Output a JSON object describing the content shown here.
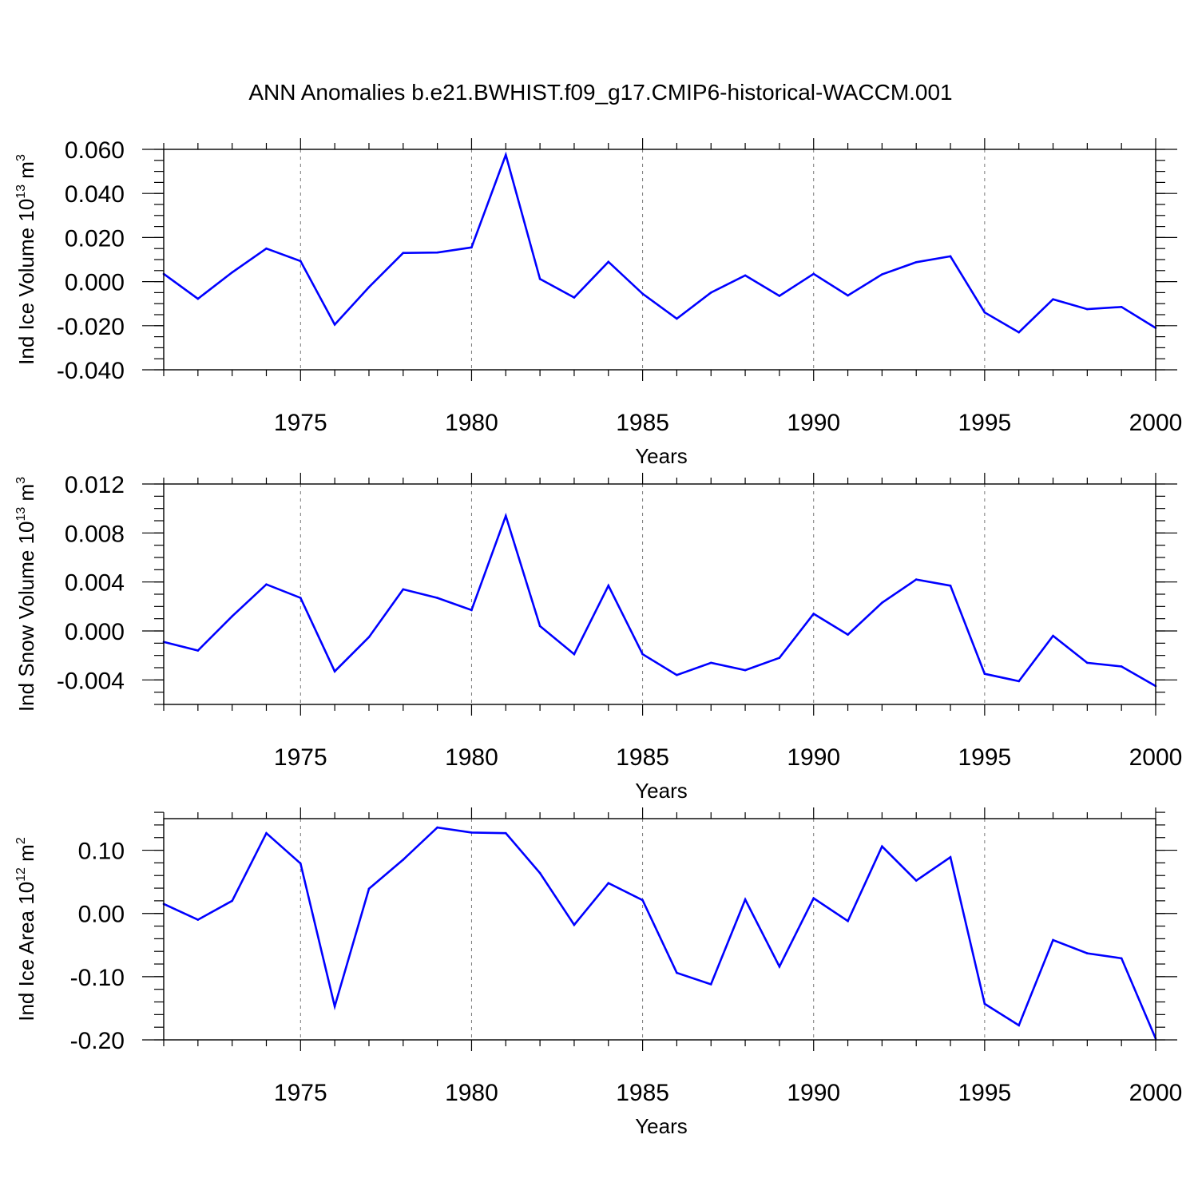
{
  "title": "ANN Anomalies b.e21.BWHIST.f09_g17.CMIP6-historical-WACCM.001",
  "colors": {
    "series": "#0000ff",
    "grid": "#777777",
    "axis": "#000000"
  },
  "chart_data": [
    {
      "type": "line",
      "ylabel_main": "Ind Ice Volume 10",
      "ylabel_exp": "13",
      "ylabel_unit": " m",
      "ylabel_unit_exp": "3",
      "xlabel": "Years",
      "xlim": [
        1971,
        2000
      ],
      "ylim": [
        -0.04,
        0.06
      ],
      "x_ticks": [
        1975,
        1980,
        1985,
        1990,
        1995,
        2000
      ],
      "x_tick_labels": [
        "1975",
        "1980",
        "1985",
        "1990",
        "1995",
        "2000"
      ],
      "y_ticks": [
        -0.04,
        -0.02,
        0.0,
        0.02,
        0.04,
        0.06
      ],
      "y_tick_labels": [
        "-0.040",
        "-0.020",
        "0.000",
        "0.020",
        "0.040",
        "0.060"
      ],
      "y_minor_step": 0.005,
      "grid_x": [
        1975,
        1980,
        1985,
        1990,
        1995
      ],
      "series": [
        {
          "name": "Ind Ice Volume",
          "x": [
            1971,
            1972,
            1973,
            1974,
            1975,
            1976,
            1977,
            1978,
            1979,
            1980,
            1981,
            1982,
            1983,
            1984,
            1985,
            1986,
            1987,
            1988,
            1989,
            1990,
            1991,
            1992,
            1993,
            1994,
            1995,
            1996,
            1997,
            1998,
            1999,
            2000
          ],
          "values": [
            0.0035,
            -0.0078,
            0.0042,
            0.015,
            0.0093,
            -0.0195,
            -0.0025,
            0.013,
            0.0132,
            0.0155,
            0.0575,
            0.0012,
            -0.0072,
            0.009,
            -0.0055,
            -0.0168,
            -0.005,
            0.0028,
            -0.0065,
            0.0035,
            -0.0063,
            0.0033,
            0.0088,
            0.0115,
            -0.014,
            -0.023,
            -0.008,
            -0.0125,
            -0.0115,
            -0.021
          ]
        }
      ]
    },
    {
      "type": "line",
      "ylabel_main": "Ind Snow Volume 10",
      "ylabel_exp": "13",
      "ylabel_unit": " m",
      "ylabel_unit_exp": "3",
      "xlabel": "Years",
      "xlim": [
        1971,
        2000
      ],
      "ylim": [
        -0.006,
        0.012
      ],
      "x_ticks": [
        1975,
        1980,
        1985,
        1990,
        1995,
        2000
      ],
      "x_tick_labels": [
        "1975",
        "1980",
        "1985",
        "1990",
        "1995",
        "2000"
      ],
      "y_ticks": [
        -0.004,
        0.0,
        0.004,
        0.008,
        0.012
      ],
      "y_tick_labels": [
        "-0.004",
        "0.000",
        "0.004",
        "0.008",
        "0.012"
      ],
      "y_minor_step": 0.001,
      "grid_x": [
        1975,
        1980,
        1985,
        1990,
        1995
      ],
      "series": [
        {
          "name": "Ind Snow Volume",
          "x": [
            1971,
            1972,
            1973,
            1974,
            1975,
            1976,
            1977,
            1978,
            1979,
            1980,
            1981,
            1982,
            1983,
            1984,
            1985,
            1986,
            1987,
            1988,
            1989,
            1990,
            1991,
            1992,
            1993,
            1994,
            1995,
            1996,
            1997,
            1998,
            1999,
            2000
          ],
          "values": [
            -0.0009,
            -0.0016,
            0.0012,
            0.0038,
            0.0027,
            -0.0033,
            -0.0005,
            0.0034,
            0.0027,
            0.0017,
            0.0094,
            0.0004,
            -0.0019,
            0.0037,
            -0.0019,
            -0.0036,
            -0.0026,
            -0.0032,
            -0.0022,
            0.0014,
            -0.0003,
            0.0023,
            0.0042,
            0.0037,
            -0.0035,
            -0.0041,
            -0.0004,
            -0.0026,
            -0.0029,
            -0.0045
          ]
        }
      ]
    },
    {
      "type": "line",
      "ylabel_main": "Ind Ice Area 10",
      "ylabel_exp": "12",
      "ylabel_unit": " m",
      "ylabel_unit_exp": "2",
      "xlabel": "Years",
      "xlim": [
        1971,
        2000
      ],
      "ylim": [
        -0.2,
        0.15
      ],
      "x_ticks": [
        1975,
        1980,
        1985,
        1990,
        1995,
        2000
      ],
      "x_tick_labels": [
        "1975",
        "1980",
        "1985",
        "1990",
        "1995",
        "2000"
      ],
      "y_ticks": [
        -0.2,
        -0.1,
        0.0,
        0.1
      ],
      "y_tick_labels": [
        "-0.20",
        "-0.10",
        "0.00",
        "0.10"
      ],
      "y_minor_step": 0.02,
      "grid_x": [
        1975,
        1980,
        1985,
        1990,
        1995
      ],
      "series": [
        {
          "name": "Ind Ice Area",
          "x": [
            1971,
            1972,
            1973,
            1974,
            1975,
            1976,
            1977,
            1978,
            1979,
            1980,
            1981,
            1982,
            1983,
            1984,
            1985,
            1986,
            1987,
            1988,
            1989,
            1990,
            1991,
            1992,
            1993,
            1994,
            1995,
            1996,
            1997,
            1998,
            1999,
            2000
          ],
          "values": [
            0.015,
            -0.01,
            0.02,
            0.127,
            0.079,
            -0.147,
            0.039,
            0.085,
            0.136,
            0.128,
            0.127,
            0.064,
            -0.018,
            0.048,
            0.021,
            -0.094,
            -0.112,
            0.022,
            -0.084,
            0.024,
            -0.012,
            0.106,
            0.052,
            0.089,
            -0.143,
            -0.177,
            -0.042,
            -0.063,
            -0.071,
            -0.198
          ]
        }
      ]
    }
  ]
}
